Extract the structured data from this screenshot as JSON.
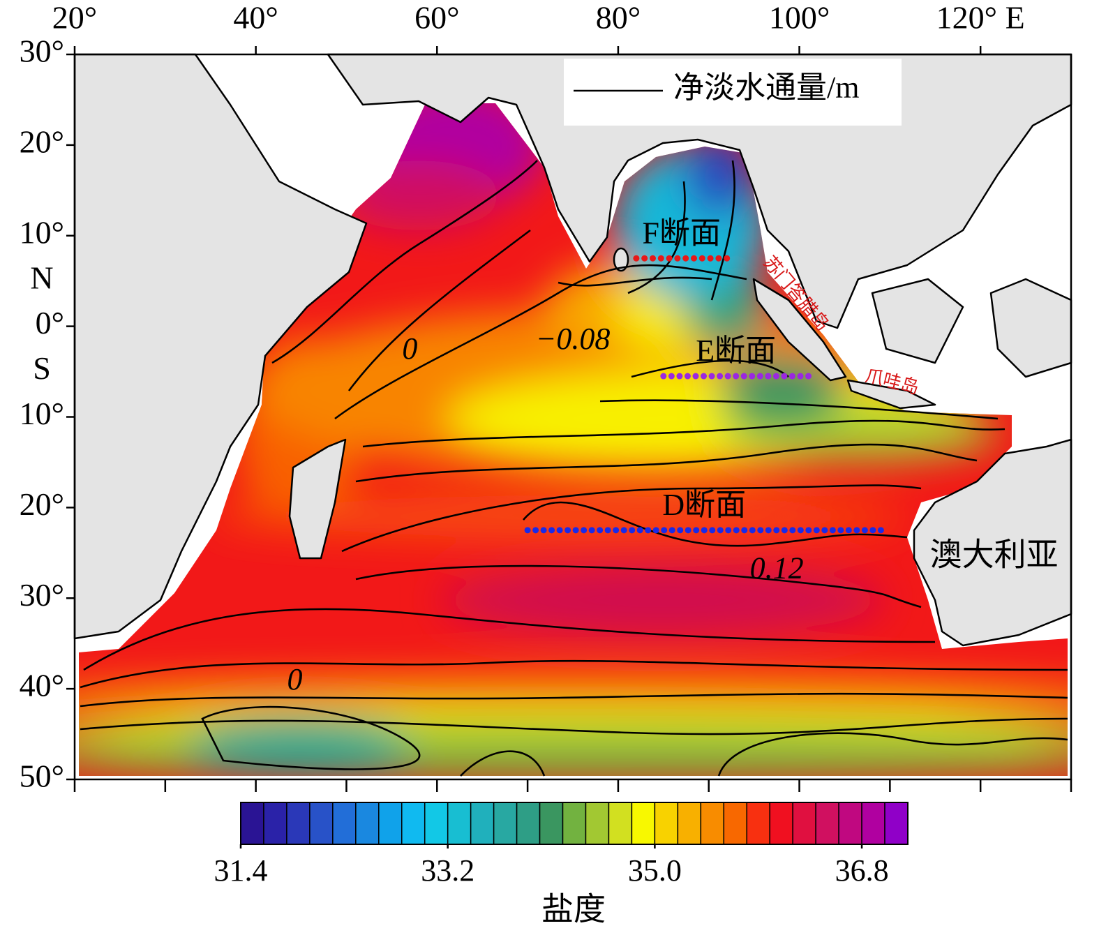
{
  "chart_data": {
    "type": "map",
    "lonlim": [
      20,
      130
    ],
    "latlim": [
      -50,
      30
    ],
    "xticks": [
      {
        "value": 20,
        "label": "20°"
      },
      {
        "value": 40,
        "label": "40°"
      },
      {
        "value": 60,
        "label": "60°"
      },
      {
        "value": 80,
        "label": "80°"
      },
      {
        "value": 100,
        "label": "100°"
      },
      {
        "value": 120,
        "label": "120° E"
      }
    ],
    "xticks_minor": [
      30,
      50,
      70,
      90,
      110,
      130
    ],
    "yticks": [
      {
        "value": 30,
        "label": "30°"
      },
      {
        "value": 20,
        "label": "20°"
      },
      {
        "value": 10,
        "label": "10°"
      },
      {
        "value": 0,
        "label": "0°"
      },
      {
        "value": -10,
        "label": "10°"
      },
      {
        "value": -20,
        "label": "20°"
      },
      {
        "value": -30,
        "label": "30°"
      },
      {
        "value": -40,
        "label": "40°"
      },
      {
        "value": -50,
        "label": "50°"
      }
    ],
    "hemisphere_labels": [
      {
        "label": "N",
        "lat": 5
      },
      {
        "label": "S",
        "lat": -5
      }
    ],
    "legend": "净淡水通量/m",
    "contour_labels": [
      {
        "label": "0",
        "lon": 57,
        "lat": -2.8
      },
      {
        "label": "−0.08",
        "lon": 75,
        "lat": -1.7
      },
      {
        "label": "0.12",
        "lon": 97.5,
        "lat": -27
      },
      {
        "label": "0",
        "lon": 44.3,
        "lat": -39.3
      }
    ],
    "sections": [
      {
        "label": "F断面",
        "lat": 7.5,
        "lon_start": 82,
        "lon_end": 92,
        "color": "#e81818"
      },
      {
        "label": "E断面",
        "lat": -5.5,
        "lon_start": 85,
        "lon_end": 101,
        "color": "#9a28e0"
      },
      {
        "label": "D断面",
        "lat": -22.5,
        "lon_start": 70,
        "lon_end": 109,
        "color": "#1a2ae8"
      }
    ],
    "place_labels": [
      {
        "label": "苏门答腊岛",
        "lon": 99.5,
        "lat": 3.5,
        "color": "#d81818"
      },
      {
        "label": "爪哇岛",
        "lon": 110.2,
        "lat": -6.3,
        "color": "#d81818"
      },
      {
        "label": "澳大利亚",
        "lon": 121.5,
        "lat": -25.6,
        "color": "#000000"
      }
    ],
    "colorbar": {
      "lim": [
        31.4,
        37.2
      ],
      "colors": [
        "#2a1494",
        "#2a22a8",
        "#2a38b8",
        "#2852c8",
        "#226ed8",
        "#1a88e0",
        "#10a2ea",
        "#10baf0",
        "#12c8e6",
        "#18bed2",
        "#20b0bc",
        "#28a8a2",
        "#2e9e86",
        "#3a9660",
        "#72b240",
        "#a2c832",
        "#d2e020",
        "#f8f800",
        "#f8d200",
        "#f8b000",
        "#f88c00",
        "#f86800",
        "#f83010",
        "#f01020",
        "#e01040",
        "#d01060",
        "#c00880",
        "#b000a0",
        "#9000c8"
      ],
      "ticks": [
        31.4,
        33.2,
        {
          "value": 35,
          "label": "35.0"
        },
        36.8
      ],
      "label": "盐度"
    }
  }
}
